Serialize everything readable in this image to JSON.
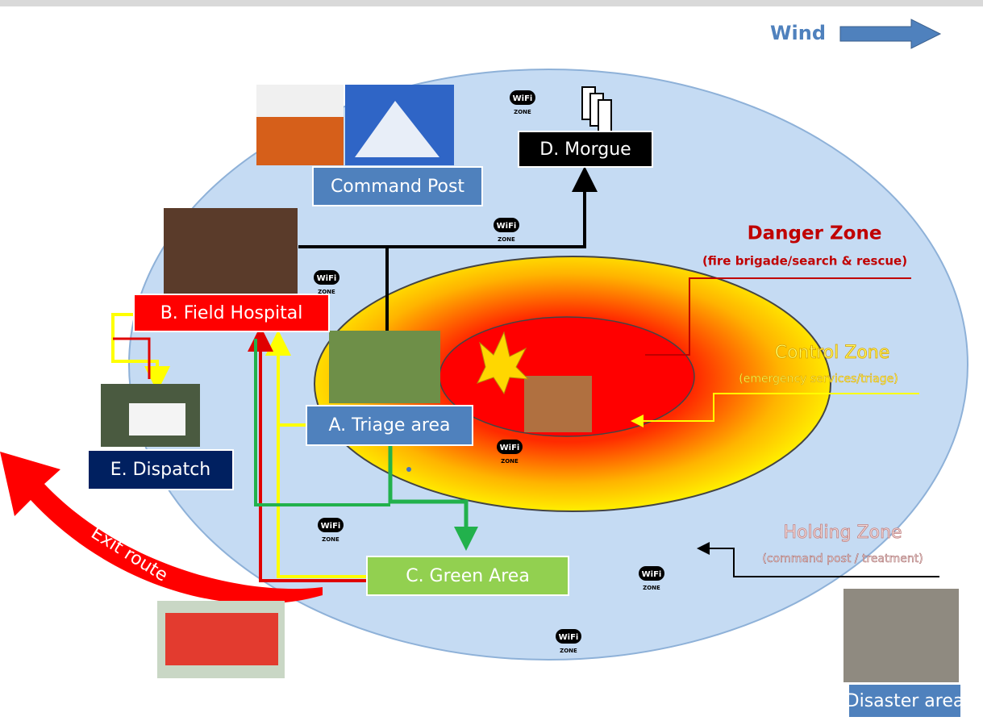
{
  "wind": {
    "label": "Wind"
  },
  "areas": {
    "morgue": "D. Morgue",
    "command_post": "Command Post",
    "field_hospital": "B. Field Hospital",
    "triage": "A. Triage area",
    "dispatch": "E. Dispatch",
    "green": "C. Green Area",
    "disaster": "Disaster area"
  },
  "zones": {
    "danger": {
      "title": "Danger Zone",
      "subtitle": "(fire brigade/search & rescue)"
    },
    "control": {
      "title": "Control Zone",
      "subtitle": "(emergency services/triage)"
    },
    "holding": {
      "title": "Holding Zone",
      "subtitle": "(command post / treatment)"
    }
  },
  "exit_route": "Exit route",
  "wifi": [
    {
      "logo": "WiFi",
      "caption": "ZONE"
    },
    {
      "logo": "WiFi",
      "caption": "ZONE"
    },
    {
      "logo": "WiFi",
      "caption": "ZONE"
    },
    {
      "logo": "WiFi",
      "caption": "ZONE"
    },
    {
      "logo": "WiFi",
      "caption": "ZONE"
    },
    {
      "logo": "WiFi",
      "caption": "ZONE"
    },
    {
      "logo": "WiFi",
      "caption": "ZONE"
    }
  ]
}
